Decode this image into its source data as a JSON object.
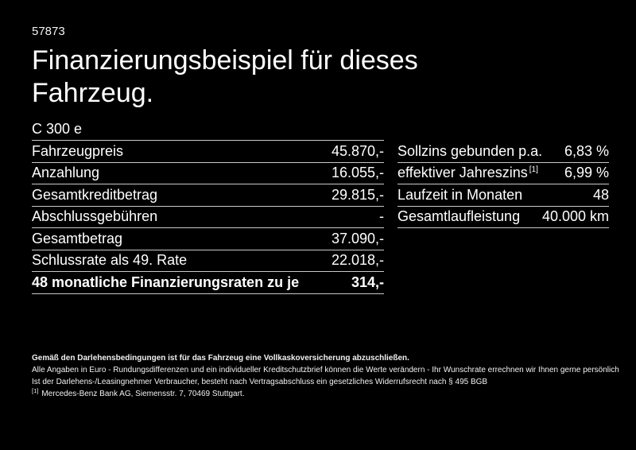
{
  "page": {
    "background_color": "#000000",
    "text_color": "#ffffff",
    "divider_color": "#c9c9c9"
  },
  "header": {
    "reference_number": "57873",
    "title": "Finanzierungsbeispiel für dieses Fahrzeug."
  },
  "model": "C 300 e",
  "finance_table": {
    "rows": [
      {
        "label": "Fahrzeugpreis",
        "value": "45.870,-"
      },
      {
        "label": "Anzahlung",
        "value": "16.055,-"
      },
      {
        "label": "Gesamtkreditbetrag",
        "value": "29.815,-"
      },
      {
        "label": "Abschlussgebühren",
        "value": "-"
      },
      {
        "label": "Gesamtbetrag",
        "value": "37.090,-"
      },
      {
        "label": "Schlussrate als 49. Rate",
        "value": "22.018,-"
      },
      {
        "label": "48 monatliche Finanzierungsraten zu je",
        "value": "314,-"
      }
    ]
  },
  "conditions_table": {
    "rows": [
      {
        "label": "Sollzins gebunden p.a.",
        "value": "6,83 %"
      },
      {
        "label": "effektiver Jahreszins",
        "label_sup": "[1]",
        "value": "6,99 %"
      },
      {
        "label": "Laufzeit in Monaten",
        "value": "48"
      },
      {
        "label": "Gesamtlaufleistung",
        "value": "40.000 km"
      }
    ]
  },
  "footer": {
    "insurance_note": "Gemäß den Darlehensbedingungen ist für das Fahrzeug eine Vollkaskoversicherung abzuschließen.",
    "disclaimer_line1": "Alle Angaben in Euro - Rundungsdifferenzen und ein individueller Kreditschutzbrief können die Werte verändern - Ihr Wunschrate errechnen wir Ihnen gerne persönlich",
    "disclaimer_line2": "Ist der Darlehens-/Leasingnehmer Verbraucher, besteht nach Vertragsabschluss ein gesetzliches Widerrufsrecht nach § 495 BGB",
    "footnote_marker": "[1]",
    "footnote_text": "Mercedes-Benz Bank AG, Siemensstr. 7, 70469 Stuttgart."
  }
}
